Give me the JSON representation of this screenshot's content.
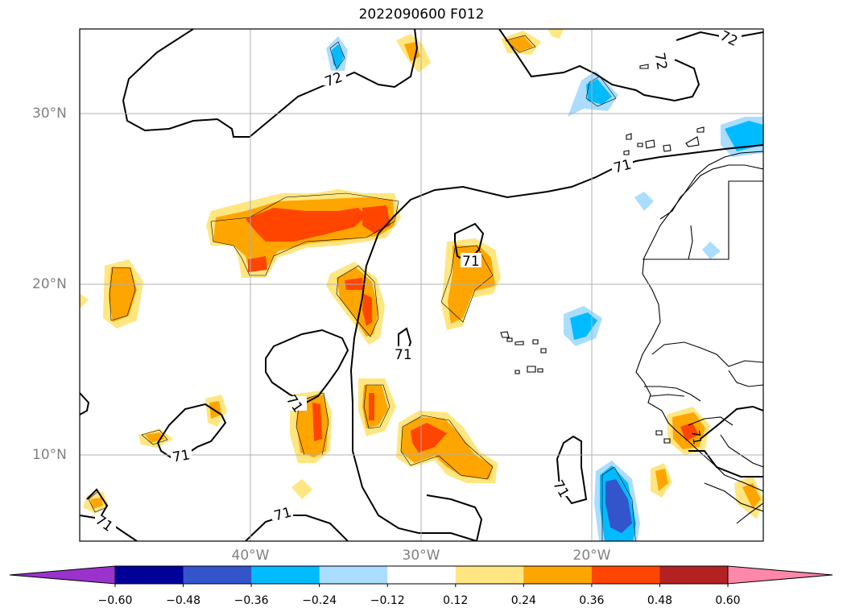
{
  "map": {
    "title": "2022090600 F012",
    "lat_labels": [
      "30°N",
      "20°N",
      "10°N"
    ],
    "lon_labels": [
      "40°W",
      "30°W",
      "20°W"
    ],
    "contour_labels": [
      "72",
      "72",
      "72",
      "71",
      "71",
      "71",
      "71",
      "71",
      "71",
      "71",
      "71",
      "71"
    ]
  },
  "colorbar": {
    "ticks": [
      "−0.60",
      "−0.48",
      "−0.36",
      "−0.24",
      "−0.12",
      "0.12",
      "0.24",
      "0.36",
      "0.48",
      "0.60"
    ],
    "colors": [
      "#9933cc",
      "#000099",
      "#3355cc",
      "#00bbff",
      "#aaddff",
      "#ffffff",
      "#ffe680",
      "#ffa500",
      "#ff4500",
      "#b22222",
      "#ff88aa"
    ]
  },
  "chart_data": {
    "type": "heatmap",
    "title": "2022090600 F012",
    "xlabel": "",
    "ylabel": "",
    "lon_range": [
      -50,
      -10
    ],
    "lat_range": [
      5,
      35
    ],
    "levels": [
      -0.6,
      -0.48,
      -0.36,
      -0.24,
      -0.12,
      0.12,
      0.24,
      0.36,
      0.48,
      0.6
    ],
    "contour_values": [
      71,
      72
    ]
  }
}
